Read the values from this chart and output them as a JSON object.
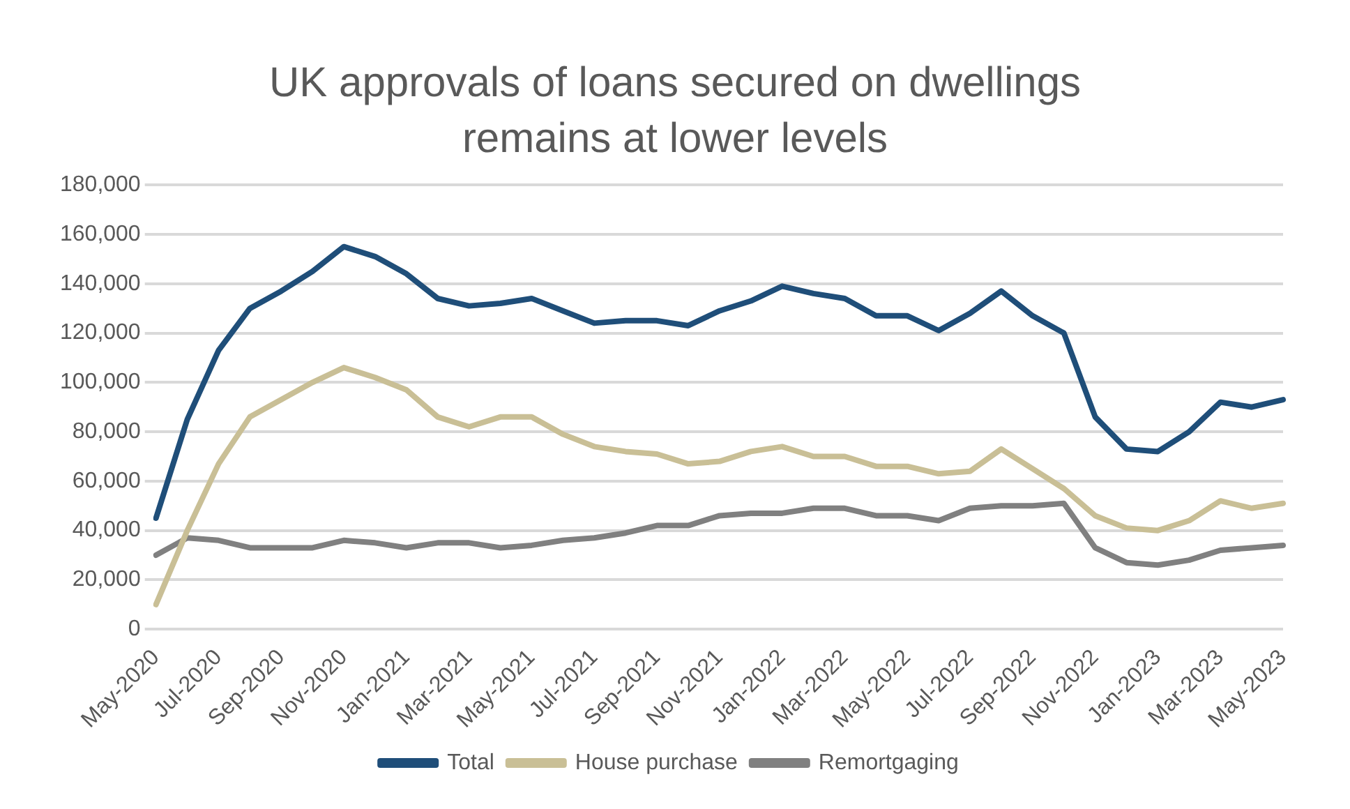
{
  "chart_data": {
    "type": "line",
    "title": "UK approvals of loans secured on dwellings remains at lower levels",
    "categories": [
      "May-2020",
      null,
      "Jul-2020",
      null,
      "Sep-2020",
      null,
      "Nov-2020",
      null,
      "Jan-2021",
      null,
      "Mar-2021",
      null,
      "May-2021",
      null,
      "Jul-2021",
      null,
      "Sep-2021",
      null,
      "Nov-2021",
      null,
      "Jan-2022",
      null,
      "Mar-2022",
      null,
      "May-2022",
      null,
      "Jul-2022",
      null,
      "Sep-2022",
      null,
      "Nov-2022",
      null,
      "Jan-2023",
      null,
      "Mar-2023",
      null,
      "May-2023"
    ],
    "series": [
      {
        "name": "Total",
        "color": "#1f4e79",
        "values": [
          45000,
          85000,
          113000,
          130000,
          137000,
          145000,
          155000,
          151000,
          144000,
          134000,
          131000,
          132000,
          134000,
          129000,
          124000,
          125000,
          125000,
          123000,
          129000,
          133000,
          139000,
          136000,
          134000,
          127000,
          127000,
          121000,
          128000,
          137000,
          127000,
          120000,
          86000,
          73000,
          72000,
          80000,
          92000,
          90000,
          93000
        ]
      },
      {
        "name": "House purchase",
        "color": "#c9bf96",
        "values": [
          10000,
          40000,
          67000,
          86000,
          93000,
          100000,
          106000,
          102000,
          97000,
          86000,
          82000,
          86000,
          86000,
          79000,
          74000,
          72000,
          71000,
          67000,
          68000,
          72000,
          74000,
          70000,
          70000,
          66000,
          66000,
          63000,
          64000,
          73000,
          65000,
          57000,
          46000,
          41000,
          40000,
          44000,
          52000,
          49000,
          51000
        ]
      },
      {
        "name": "Remortgaging",
        "color": "#808080",
        "values": [
          30000,
          37000,
          36000,
          33000,
          33000,
          33000,
          36000,
          35000,
          33000,
          35000,
          35000,
          33000,
          34000,
          36000,
          37000,
          39000,
          42000,
          42000,
          46000,
          47000,
          47000,
          49000,
          49000,
          46000,
          46000,
          44000,
          49000,
          50000,
          50000,
          51000,
          33000,
          27000,
          26000,
          28000,
          32000,
          33000,
          34000
        ]
      }
    ],
    "ylim": [
      0,
      180000
    ],
    "yticks": [
      0,
      {
        "value": 20000,
        "label": "20,000"
      },
      {
        "value": 40000,
        "label": "40,000"
      },
      {
        "value": 60000,
        "label": "60,000"
      },
      {
        "value": 80000,
        "label": "80,000"
      },
      {
        "value": 100000,
        "label": "100,000"
      },
      {
        "value": 120000,
        "label": "120,000"
      },
      {
        "value": 140000,
        "label": "140,000"
      },
      {
        "value": 160000,
        "label": "160,000"
      },
      {
        "value": 180000,
        "label": "180,000"
      }
    ],
    "grid": "y",
    "legend": "bottom",
    "marker": "none",
    "line_style": "solid"
  }
}
